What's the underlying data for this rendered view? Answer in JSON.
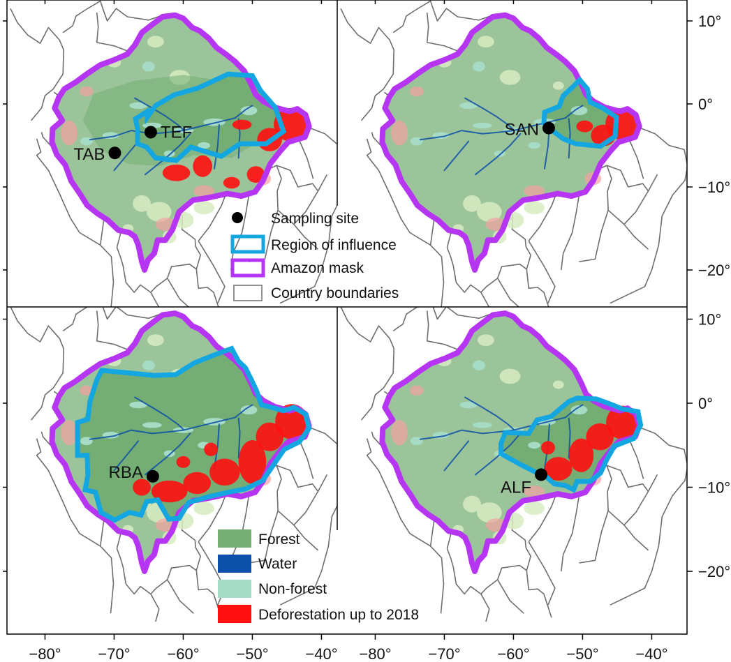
{
  "colors": {
    "forest": "#74ae74",
    "forest_light": "#9cc49a",
    "water": "#0b4fa8",
    "non_forest": "#a6dcc6",
    "savanna": "#d8ecc2",
    "deforestation": "#ff1010",
    "deforestation_light": "#f5a3a3",
    "region_of_influence": "#13a6e0",
    "amazon_mask": "#b535f2",
    "country_boundaries": "#6e6e6e",
    "site": "#000000"
  },
  "axes": {
    "lon_ticks_left": [
      "−80°",
      "−70°",
      "−60°",
      "−50°",
      "−40°"
    ],
    "lon_ticks_right": [
      "−80°",
      "−70°",
      "−60°",
      "−50°",
      "−40°"
    ],
    "lat_ticks_top": [
      "10°",
      "0°",
      "−10°",
      "−20°"
    ],
    "lat_ticks_bottom": [
      "10°",
      "0°",
      "−10°",
      "−20°"
    ]
  },
  "panels": [
    {
      "id": "top-left",
      "sites": [
        {
          "label": "TEF",
          "lon": -64.7,
          "lat": -3.4
        },
        {
          "label": "TAB",
          "lon": -69.9,
          "lat": -5.9
        }
      ]
    },
    {
      "id": "top-right",
      "sites": [
        {
          "label": "SAN",
          "lon": -54.9,
          "lat": -2.9
        }
      ]
    },
    {
      "id": "bottom-left",
      "sites": [
        {
          "label": "RBA",
          "lon": -64.4,
          "lat": -8.7
        }
      ]
    },
    {
      "id": "bottom-right",
      "sites": [
        {
          "label": "ALF",
          "lon": -56.0,
          "lat": -8.5
        }
      ]
    }
  ],
  "legend_lines": {
    "sampling_site": "Sampling site",
    "region_of_influence": "Region of influence",
    "amazon_mask": "Amazon mask",
    "country_boundaries": "Country boundaries"
  },
  "legend_land": {
    "forest": "Forest",
    "water": "Water",
    "non_forest": "Non-forest",
    "deforestation": "Deforestation up to 2018"
  }
}
